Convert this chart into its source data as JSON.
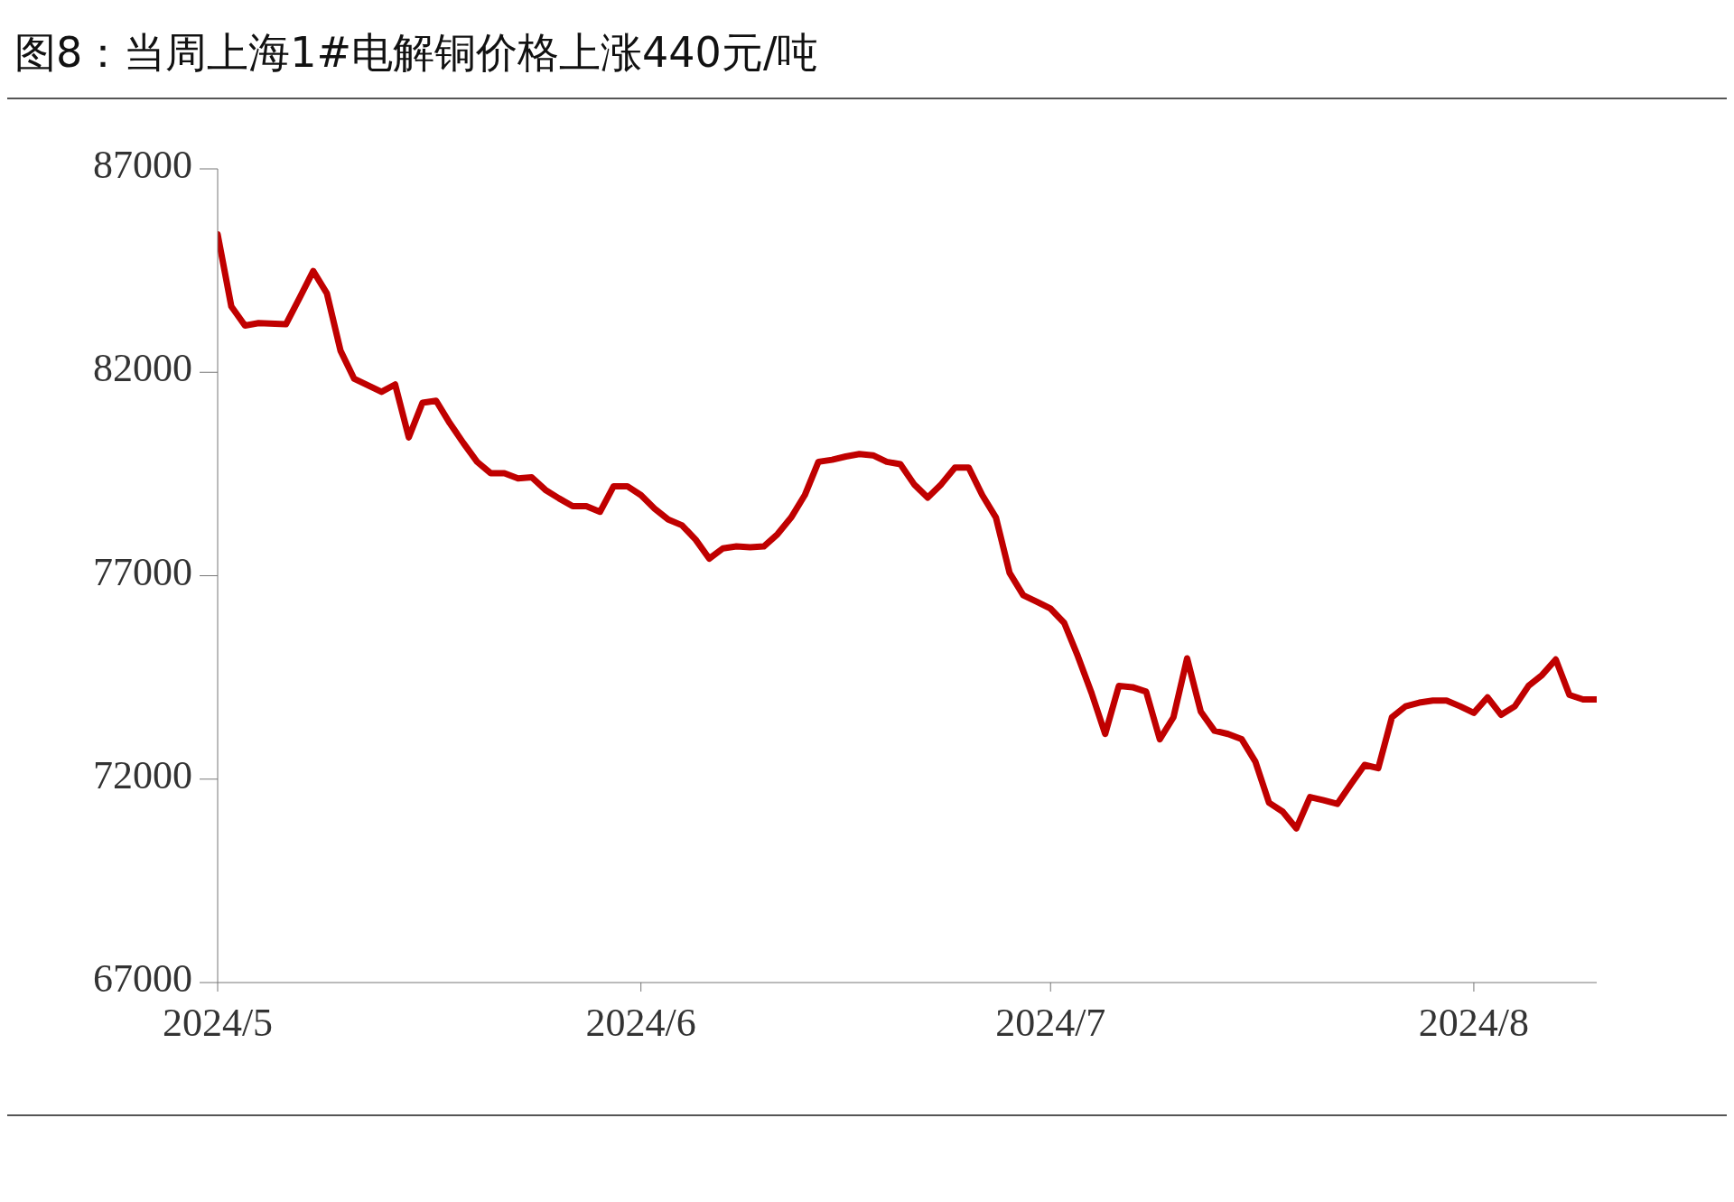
{
  "chart_data": {
    "type": "line",
    "title": "图8：当周上海1#电解铜价格上涨440元/吨",
    "x": [
      "2024-05-01",
      "2024-05-02",
      "2024-05-03",
      "2024-05-04",
      "2024-05-06",
      "2024-05-07",
      "2024-05-08",
      "2024-05-09",
      "2024-05-10",
      "2024-05-11",
      "2024-05-13",
      "2024-05-14",
      "2024-05-15",
      "2024-05-16",
      "2024-05-17",
      "2024-05-18",
      "2024-05-19",
      "2024-05-20",
      "2024-05-21",
      "2024-05-22",
      "2024-05-23",
      "2024-05-24",
      "2024-05-25",
      "2024-05-26",
      "2024-05-27",
      "2024-05-28",
      "2024-05-29",
      "2024-05-30",
      "2024-05-31",
      "2024-06-01",
      "2024-06-02",
      "2024-06-03",
      "2024-06-04",
      "2024-06-05",
      "2024-06-06",
      "2024-06-07",
      "2024-06-08",
      "2024-06-09",
      "2024-06-10",
      "2024-06-11",
      "2024-06-12",
      "2024-06-13",
      "2024-06-14",
      "2024-06-15",
      "2024-06-16",
      "2024-06-17",
      "2024-06-18",
      "2024-06-19",
      "2024-06-20",
      "2024-06-21",
      "2024-06-22",
      "2024-06-23",
      "2024-06-24",
      "2024-06-25",
      "2024-06-26",
      "2024-06-27",
      "2024-06-28",
      "2024-06-29",
      "2024-06-30",
      "2024-07-01",
      "2024-07-02",
      "2024-07-03",
      "2024-07-04",
      "2024-07-05",
      "2024-07-06",
      "2024-07-07",
      "2024-07-08",
      "2024-07-09",
      "2024-07-10",
      "2024-07-11",
      "2024-07-12",
      "2024-07-13",
      "2024-07-14",
      "2024-07-15",
      "2024-07-16",
      "2024-07-17",
      "2024-07-18",
      "2024-07-19",
      "2024-07-20",
      "2024-07-21",
      "2024-07-22",
      "2024-07-23",
      "2024-07-24",
      "2024-07-25",
      "2024-07-26",
      "2024-07-27",
      "2024-07-28",
      "2024-07-29",
      "2024-07-30",
      "2024-07-31",
      "2024-08-01",
      "2024-08-02",
      "2024-08-03",
      "2024-08-04",
      "2024-08-05",
      "2024-08-06",
      "2024-08-07",
      "2024-08-08",
      "2024-08-09",
      "2024-08-10"
    ],
    "series": [
      {
        "color": "#c00000",
        "values": [
          85390,
          83620,
          83150,
          83210,
          83180,
          83830,
          84490,
          83940,
          82530,
          81840,
          81520,
          81700,
          80400,
          81250,
          81300,
          80750,
          80260,
          79800,
          79520,
          79520,
          79390,
          79420,
          79110,
          78900,
          78710,
          78710,
          78570,
          79200,
          79200,
          78980,
          78650,
          78380,
          78240,
          77890,
          77420,
          77670,
          77720,
          77700,
          77720,
          78020,
          78430,
          78980,
          79800,
          79850,
          79930,
          79990,
          79960,
          79800,
          79740,
          79250,
          78920,
          79250,
          79660,
          79660,
          78980,
          78430,
          77070,
          76520,
          76360,
          76190,
          75840,
          75020,
          74120,
          73110,
          74290,
          74260,
          74150,
          72980,
          73520,
          74970,
          73660,
          73190,
          73110,
          72980,
          72430,
          71420,
          71200,
          70790,
          71560,
          71480,
          71390,
          71880,
          72350,
          72270,
          73520,
          73790,
          73880,
          73930,
          73930,
          73790,
          73630,
          74010,
          73580,
          73790,
          74290,
          74560,
          74940,
          74070,
          73960,
          73960
        ]
      }
    ],
    "xlim": [
      "2024-05-01",
      "2024-08-10"
    ],
    "xticks": [
      {
        "value": "2024-05-01",
        "label": "2024/5"
      },
      {
        "value": "2024-06-01",
        "label": "2024/6"
      },
      {
        "value": "2024-07-01",
        "label": "2024/7"
      },
      {
        "value": "2024-08-01",
        "label": "2024/8"
      }
    ],
    "ylim": [
      67000,
      87000
    ],
    "yticks": [
      67000,
      72000,
      77000,
      82000,
      87000
    ],
    "marker": "none",
    "line_style": "solid"
  }
}
